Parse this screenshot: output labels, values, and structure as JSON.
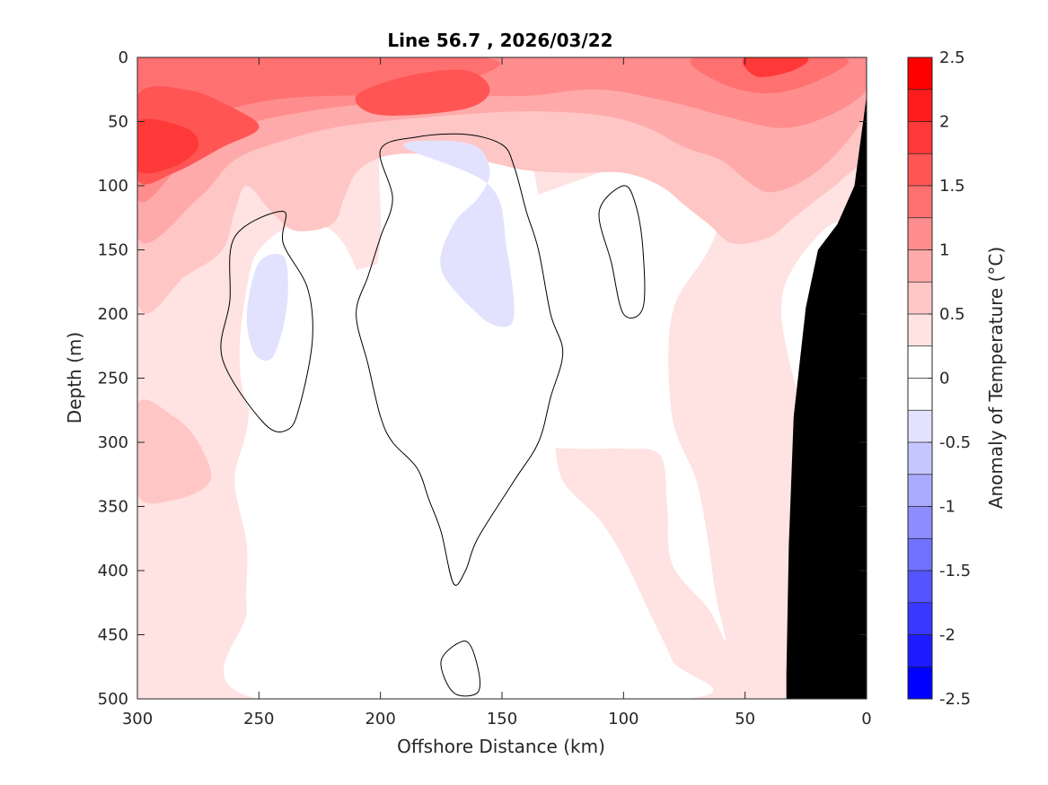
{
  "chart_data": {
    "type": "contour",
    "title": "Line 56.7 , 2026/03/22",
    "xlabel": "Offshore Distance (km)",
    "ylabel": "Depth (m)",
    "xlim": [
      300,
      0
    ],
    "ylim": [
      0,
      500
    ],
    "xticks": [
      300,
      250,
      200,
      150,
      100,
      50,
      0
    ],
    "yticks": [
      0,
      50,
      100,
      150,
      200,
      250,
      300,
      350,
      400,
      450,
      500
    ],
    "colorbar": {
      "label": "Anomaly of Temperature (°C)",
      "clim": [
        -2.5,
        2.5
      ],
      "tick_values": [
        2.5,
        2,
        1.5,
        1,
        0.5,
        0,
        -0.5,
        -1,
        -1.5,
        -2,
        -2.5
      ],
      "tick_labels": [
        "2.5",
        "2",
        "1.5",
        "1",
        "0.5",
        "0",
        "-0.5",
        "-1",
        "-1.5",
        "-2",
        "-2.5"
      ],
      "levels": [
        2.5,
        2.25,
        2.0,
        1.75,
        1.5,
        1.25,
        1.0,
        0.75,
        0.5,
        0.25,
        0.0,
        -0.25,
        -0.5,
        -0.75,
        -1.0,
        -1.25,
        -1.5,
        -1.75,
        -2.0,
        -2.25,
        -2.5
      ],
      "colors": [
        "#ff0000",
        "#ff1c1c",
        "#ff3838",
        "#ff5555",
        "#ff7171",
        "#ff8d8d",
        "#ffaaaa",
        "#ffc6c6",
        "#ffe2e2",
        "#ffffff",
        "#ffffff",
        "#e2e2ff",
        "#c6c6ff",
        "#aaaaff",
        "#8d8dff",
        "#7171ff",
        "#5555ff",
        "#3838ff",
        "#1c1cff",
        "#0000ff"
      ]
    },
    "regions": [
      {
        "name": "anomaly-0.5-to-0.75",
        "level": 0.5,
        "color": "#ffe2e2",
        "points": [
          [
            300,
            0
          ],
          [
            0,
            0
          ],
          [
            0,
            500
          ],
          [
            300,
            500
          ]
        ]
      },
      {
        "name": "zero-band-east",
        "level": 0.0,
        "color": "#ffffff",
        "points": [
          [
            58,
            455
          ],
          [
            65,
            430
          ],
          [
            80,
            395
          ],
          [
            82,
            350
          ],
          [
            85,
            310
          ],
          [
            100,
            305
          ],
          [
            120,
            305
          ],
          [
            160,
            300
          ],
          [
            150,
            285
          ],
          [
            140,
            280
          ],
          [
            130,
            290
          ],
          [
            125,
            330
          ],
          [
            110,
            360
          ],
          [
            100,
            390
          ],
          [
            90,
            430
          ],
          [
            80,
            470
          ],
          [
            75,
            500
          ],
          [
            250,
            500
          ],
          [
            255,
            430
          ],
          [
            255,
            380
          ],
          [
            260,
            330
          ],
          [
            255,
            290
          ],
          [
            250,
            230
          ],
          [
            235,
            195
          ],
          [
            215,
            170
          ],
          [
            200,
            160
          ],
          [
            190,
            150
          ],
          [
            175,
            140
          ],
          [
            160,
            120
          ],
          [
            140,
            110
          ],
          [
            110,
            90
          ],
          [
            85,
            75
          ],
          [
            70,
            70
          ],
          [
            60,
            75
          ],
          [
            55,
            100
          ],
          [
            65,
            150
          ],
          [
            80,
            200
          ],
          [
            80,
            280
          ],
          [
            70,
            330
          ],
          [
            65,
            380
          ],
          [
            62,
            420
          ]
        ]
      },
      {
        "name": "zero-band-west",
        "level": 0.0,
        "color": "#ffffff",
        "points": [
          [
            255,
            180
          ],
          [
            250,
            150
          ],
          [
            235,
            130
          ],
          [
            220,
            135
          ],
          [
            210,
            165
          ],
          [
            205,
            210
          ],
          [
            210,
            260
          ],
          [
            225,
            285
          ],
          [
            245,
            290
          ],
          [
            255,
            270
          ],
          [
            258,
            230
          ]
        ]
      },
      {
        "name": "zero-band-center",
        "level": 0.0,
        "color": "#ffffff",
        "points": [
          [
            200,
            75
          ],
          [
            190,
            65
          ],
          [
            170,
            60
          ],
          [
            150,
            62
          ],
          [
            140,
            75
          ],
          [
            135,
            110
          ],
          [
            135,
            170
          ],
          [
            140,
            220
          ],
          [
            145,
            280
          ],
          [
            150,
            330
          ],
          [
            160,
            380
          ],
          [
            170,
            400
          ],
          [
            180,
            380
          ],
          [
            190,
            330
          ],
          [
            200,
            300
          ],
          [
            210,
            250
          ],
          [
            205,
            200
          ],
          [
            200,
            140
          ]
        ]
      },
      {
        "name": "zero-band-coastal",
        "level": 0.0,
        "color": "#ffffff",
        "points": [
          [
            25,
            150
          ],
          [
            10,
            130
          ],
          [
            5,
            190
          ],
          [
            12,
            260
          ],
          [
            20,
            300
          ],
          [
            30,
            250
          ],
          [
            35,
            190
          ]
        ]
      },
      {
        "name": "anomaly-0.75-to-1",
        "level": 0.75,
        "color": "#ffc6c6",
        "points": [
          [
            300,
            0
          ],
          [
            0,
            0
          ],
          [
            0,
            70
          ],
          [
            10,
            95
          ],
          [
            20,
            110
          ],
          [
            30,
            125
          ],
          [
            40,
            140
          ],
          [
            55,
            145
          ],
          [
            65,
            130
          ],
          [
            75,
            115
          ],
          [
            85,
            100
          ],
          [
            100,
            90
          ],
          [
            120,
            90
          ],
          [
            140,
            88
          ],
          [
            160,
            80
          ],
          [
            185,
            75
          ],
          [
            200,
            78
          ],
          [
            210,
            90
          ],
          [
            215,
            110
          ],
          [
            220,
            130
          ],
          [
            235,
            135
          ],
          [
            245,
            120
          ],
          [
            255,
            100
          ],
          [
            260,
            120
          ],
          [
            265,
            150
          ],
          [
            280,
            170
          ],
          [
            300,
            190
          ]
        ]
      },
      {
        "name": "anomaly-0.75-deep-west",
        "level": 0.75,
        "color": "#ffc6c6",
        "points": [
          [
            300,
            270
          ],
          [
            285,
            280
          ],
          [
            275,
            300
          ],
          [
            270,
            330
          ],
          [
            285,
            345
          ],
          [
            300,
            340
          ]
        ]
      },
      {
        "name": "anomaly-1-to-1.25",
        "level": 1.0,
        "color": "#ffaaaa",
        "points": [
          [
            300,
            0
          ],
          [
            0,
            0
          ],
          [
            0,
            40
          ],
          [
            10,
            70
          ],
          [
            25,
            95
          ],
          [
            40,
            105
          ],
          [
            50,
            95
          ],
          [
            60,
            80
          ],
          [
            75,
            70
          ],
          [
            90,
            55
          ],
          [
            110,
            45
          ],
          [
            140,
            42
          ],
          [
            170,
            45
          ],
          [
            200,
            50
          ],
          [
            220,
            55
          ],
          [
            240,
            65
          ],
          [
            260,
            80
          ],
          [
            275,
            110
          ],
          [
            300,
            140
          ]
        ]
      },
      {
        "name": "anomaly-1.25-to-1.5",
        "level": 1.25,
        "color": "#ff8d8d",
        "points": [
          [
            300,
            0
          ],
          [
            0,
            0
          ],
          [
            0,
            25
          ],
          [
            15,
            45
          ],
          [
            35,
            55
          ],
          [
            60,
            45
          ],
          [
            80,
            35
          ],
          [
            110,
            25
          ],
          [
            140,
            30
          ],
          [
            170,
            30
          ],
          [
            200,
            35
          ],
          [
            230,
            42
          ],
          [
            260,
            55
          ],
          [
            280,
            80
          ],
          [
            300,
            110
          ]
        ]
      },
      {
        "name": "anomaly-1.5-to-1.75",
        "level": 1.5,
        "color": "#ff7171",
        "points": [
          [
            300,
            0
          ],
          [
            160,
            0
          ],
          [
            165,
            20
          ],
          [
            175,
            35
          ],
          [
            200,
            30
          ],
          [
            240,
            32
          ],
          [
            270,
            45
          ],
          [
            290,
            65
          ],
          [
            300,
            80
          ]
        ]
      },
      {
        "name": "anomaly-1.5-northeast",
        "level": 1.5,
        "color": "#ff7171",
        "points": [
          [
            70,
            0
          ],
          [
            10,
            0
          ],
          [
            20,
            18
          ],
          [
            40,
            28
          ],
          [
            60,
            20
          ]
        ]
      },
      {
        "name": "anomaly-1.75-to-2",
        "level": 1.75,
        "color": "#ff5555",
        "points": [
          [
            300,
            30
          ],
          [
            280,
            25
          ],
          [
            260,
            40
          ],
          [
            250,
            55
          ],
          [
            265,
            70
          ],
          [
            285,
            90
          ],
          [
            300,
            95
          ]
        ]
      },
      {
        "name": "anomaly-1.75-core",
        "level": 1.75,
        "color": "#ff5555",
        "points": [
          [
            165,
            10
          ],
          [
            155,
            25
          ],
          [
            165,
            40
          ],
          [
            200,
            45
          ],
          [
            210,
            30
          ],
          [
            190,
            15
          ]
        ]
      },
      {
        "name": "anomaly-2-core",
        "level": 2.0,
        "color": "#ff3838",
        "points": [
          [
            300,
            50
          ],
          [
            280,
            55
          ],
          [
            275,
            70
          ],
          [
            285,
            85
          ],
          [
            300,
            88
          ]
        ]
      },
      {
        "name": "anomaly-2-northeast",
        "level": 2.0,
        "color": "#ff3838",
        "points": [
          [
            50,
            0
          ],
          [
            25,
            0
          ],
          [
            30,
            10
          ],
          [
            45,
            15
          ]
        ]
      },
      {
        "name": "anomaly-minus0.25-west",
        "level": -0.25,
        "color": "#e2e2ff",
        "points": [
          [
            250,
            160
          ],
          [
            240,
            155
          ],
          [
            238,
            180
          ],
          [
            240,
            210
          ],
          [
            245,
            235
          ],
          [
            252,
            230
          ],
          [
            255,
            200
          ]
        ]
      },
      {
        "name": "anomaly-minus0.25-center",
        "level": -0.25,
        "color": "#e2e2ff",
        "points": [
          [
            190,
            70
          ],
          [
            175,
            65
          ],
          [
            160,
            70
          ],
          [
            155,
            90
          ],
          [
            160,
            110
          ],
          [
            170,
            130
          ],
          [
            175,
            165
          ],
          [
            160,
            200
          ],
          [
            150,
            210
          ],
          [
            145,
            200
          ],
          [
            148,
            150
          ],
          [
            155,
            100
          ]
        ]
      }
    ],
    "zero_contours": [
      {
        "name": "zero-contour-west",
        "points": [
          [
            240,
            120
          ],
          [
            260,
            140
          ],
          [
            262,
            190
          ],
          [
            265,
            235
          ],
          [
            248,
            285
          ],
          [
            238,
            290
          ],
          [
            233,
            270
          ],
          [
            228,
            220
          ],
          [
            230,
            180
          ],
          [
            240,
            145
          ]
        ]
      },
      {
        "name": "zero-contour-center",
        "points": [
          [
            200,
            72
          ],
          [
            185,
            62
          ],
          [
            165,
            60
          ],
          [
            150,
            68
          ],
          [
            145,
            85
          ],
          [
            140,
            120
          ],
          [
            135,
            150
          ],
          [
            130,
            200
          ],
          [
            125,
            230
          ],
          [
            130,
            265
          ],
          [
            135,
            300
          ],
          [
            145,
            330
          ],
          [
            160,
            375
          ],
          [
            165,
            400
          ],
          [
            170,
            410
          ],
          [
            175,
            370
          ],
          [
            180,
            345
          ],
          [
            185,
            320
          ],
          [
            195,
            300
          ],
          [
            200,
            280
          ],
          [
            205,
            240
          ],
          [
            210,
            200
          ],
          [
            205,
            170
          ],
          [
            200,
            140
          ],
          [
            195,
            110
          ]
        ]
      },
      {
        "name": "zero-contour-east",
        "points": [
          [
            100,
            100
          ],
          [
            95,
            115
          ],
          [
            92,
            150
          ],
          [
            92,
            195
          ],
          [
            100,
            200
          ],
          [
            105,
            160
          ],
          [
            110,
            120
          ]
        ]
      },
      {
        "name": "zero-contour-deep-island",
        "points": [
          [
            165,
            455
          ],
          [
            160,
            475
          ],
          [
            160,
            495
          ],
          [
            170,
            495
          ],
          [
            175,
            470
          ]
        ]
      }
    ],
    "bathymetry": {
      "label": "seafloor",
      "color": "#000000",
      "profile": [
        [
          0,
          30
        ],
        [
          5,
          100
        ],
        [
          12,
          130
        ],
        [
          20,
          150
        ],
        [
          25,
          195
        ],
        [
          30,
          280
        ],
        [
          32,
          380
        ],
        [
          33,
          480
        ],
        [
          33,
          500
        ]
      ]
    }
  }
}
